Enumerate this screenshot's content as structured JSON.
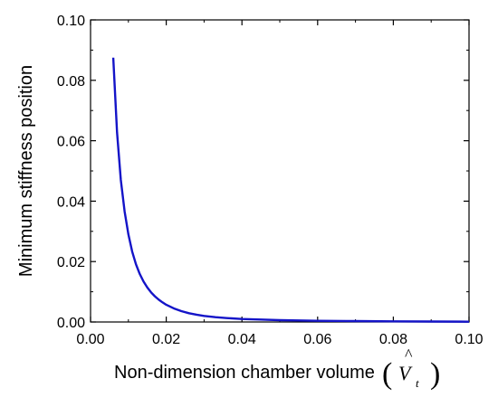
{
  "chart_data": {
    "type": "line",
    "title": "",
    "xlabel": "Non-dimension chamber volume",
    "xlabel_symbol": "V",
    "xlabel_symbol_subscript": "t",
    "ylabel": "Minimum stiffness position",
    "xlim": [
      0.0,
      0.1
    ],
    "ylim": [
      0.0,
      0.1
    ],
    "xticks": [
      "0.00",
      "0.02",
      "0.04",
      "0.06",
      "0.08",
      "0.10"
    ],
    "yticks": [
      "0.00",
      "0.02",
      "0.04",
      "0.06",
      "0.08",
      "0.10"
    ],
    "grid": false,
    "legend": "none",
    "series": [
      {
        "color": "#1414c8",
        "x": [
          0.006,
          0.007,
          0.008,
          0.009,
          0.01,
          0.011,
          0.012,
          0.013,
          0.014,
          0.015,
          0.016,
          0.017,
          0.018,
          0.019,
          0.02,
          0.022,
          0.024,
          0.026,
          0.028,
          0.03,
          0.033,
          0.036,
          0.04,
          0.045,
          0.05,
          0.055,
          0.06,
          0.07,
          0.08,
          0.09,
          0.1
        ],
        "y": [
          0.0875,
          0.0628,
          0.047,
          0.0366,
          0.029,
          0.0233,
          0.0191,
          0.0159,
          0.0134,
          0.0114,
          0.0098,
          0.0085,
          0.0074,
          0.0065,
          0.0057,
          0.0045,
          0.0036,
          0.0029,
          0.0024,
          0.002,
          0.0016,
          0.0013,
          0.001,
          0.0008,
          0.0006,
          0.0005,
          0.0004,
          0.0003,
          0.0002,
          0.00015,
          0.0001
        ]
      }
    ]
  }
}
